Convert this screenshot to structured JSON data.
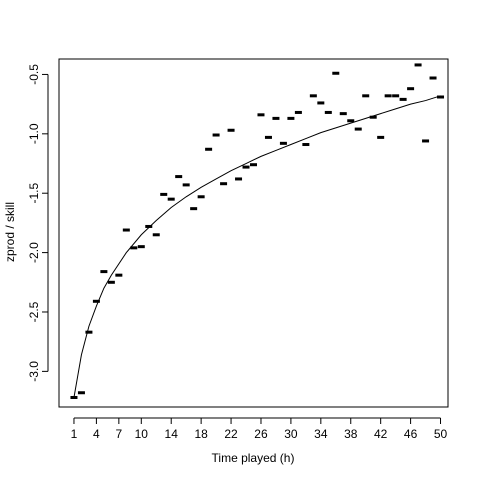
{
  "chart_data": {
    "type": "scatter",
    "title": "",
    "xlabel": "Time played (h)",
    "ylabel": "zprod / skill",
    "xlim": [
      -1,
      51
    ],
    "ylim": [
      -3.3,
      -0.37
    ],
    "xticks": [
      1,
      4,
      7,
      10,
      14,
      18,
      22,
      26,
      30,
      34,
      38,
      42,
      46,
      50
    ],
    "xtick_labels": [
      "1",
      "4",
      "7",
      "10",
      "14",
      "18",
      "22",
      "26",
      "30",
      "34",
      "38",
      "42",
      "46",
      "50"
    ],
    "yticks": [
      -3.0,
      -2.5,
      -2.0,
      -1.5,
      -1.0,
      -0.5
    ],
    "ytick_labels": [
      "-3.0",
      "-2.5",
      "-2.0",
      "-1.5",
      "-1.0",
      "-0.5"
    ],
    "grid": false,
    "series": [
      {
        "kind": "points",
        "marker": "dash",
        "x": [
          1,
          2,
          3,
          4,
          5,
          6,
          7,
          8,
          9,
          10,
          11,
          12,
          13,
          14,
          15,
          16,
          17,
          18,
          19,
          20,
          21,
          22,
          23,
          24,
          25,
          26,
          27,
          28,
          29,
          30,
          31,
          32,
          33,
          34,
          35,
          36,
          37,
          38,
          39,
          40,
          41,
          42,
          43,
          44,
          45,
          46,
          47,
          48,
          49,
          50
        ],
        "y": [
          -3.22,
          -3.18,
          -2.67,
          -2.41,
          -2.16,
          -2.25,
          -2.19,
          -1.81,
          -1.96,
          -1.95,
          -1.78,
          -1.85,
          -1.51,
          -1.55,
          -1.36,
          -1.43,
          -1.63,
          -1.53,
          -1.13,
          -1.01,
          -1.42,
          -0.97,
          -1.38,
          -1.28,
          -1.26,
          -0.84,
          -1.03,
          -0.87,
          -1.08,
          -0.87,
          -0.82,
          -1.09,
          -0.68,
          -0.74,
          -0.82,
          -0.49,
          -0.83,
          -0.89,
          -0.96,
          -0.68,
          -0.86,
          -1.03,
          -0.68,
          -0.68,
          -0.71,
          -0.62,
          -0.42,
          -1.06,
          -0.53,
          -0.69
        ]
      },
      {
        "kind": "fitted-curve",
        "x": [
          1,
          2,
          3,
          4,
          5,
          6,
          8,
          10,
          12,
          14,
          16,
          18,
          20,
          22,
          24,
          26,
          28,
          30,
          32,
          34,
          36,
          38,
          40,
          42,
          44,
          46,
          48,
          50
        ],
        "y": [
          -3.22,
          -2.86,
          -2.62,
          -2.45,
          -2.3,
          -2.19,
          -2.0,
          -1.85,
          -1.73,
          -1.62,
          -1.53,
          -1.45,
          -1.38,
          -1.31,
          -1.25,
          -1.19,
          -1.14,
          -1.09,
          -1.04,
          -0.99,
          -0.95,
          -0.91,
          -0.87,
          -0.83,
          -0.79,
          -0.75,
          -0.72,
          -0.68
        ]
      }
    ]
  }
}
